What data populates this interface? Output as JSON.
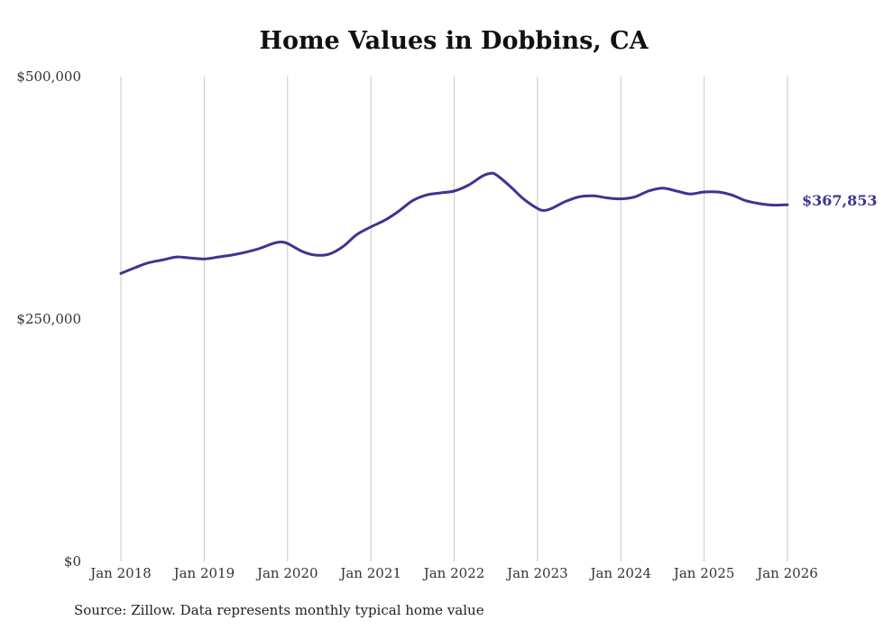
{
  "title": "Home Values in Dobbins, CA",
  "source": "Source: Zillow. Data represents monthly typical home value",
  "colors": {
    "line": "#3d3590",
    "grid": "#c8c8c8",
    "text": "#333333"
  },
  "chart_data": {
    "type": "line",
    "title": "Home Values in Dobbins, CA",
    "xlabel": "",
    "ylabel": "",
    "ylim": [
      0,
      500000
    ],
    "yticks": [
      {
        "value": 0,
        "label": "$0"
      },
      {
        "value": 250000,
        "label": "$250,000"
      },
      {
        "value": 500000,
        "label": "$500,000"
      }
    ],
    "xlim": [
      2018.0,
      2026.0
    ],
    "xticks": [
      {
        "value": 2018,
        "label": "Jan 2018"
      },
      {
        "value": 2019,
        "label": "Jan 2019"
      },
      {
        "value": 2020,
        "label": "Jan 2020"
      },
      {
        "value": 2021,
        "label": "Jan 2021"
      },
      {
        "value": 2022,
        "label": "Jan 2022"
      },
      {
        "value": 2023,
        "label": "Jan 2023"
      },
      {
        "value": 2024,
        "label": "Jan 2024"
      },
      {
        "value": 2025,
        "label": "Jan 2025"
      },
      {
        "value": 2026,
        "label": "Jan 2026"
      }
    ],
    "grid": "vertical",
    "end_label": "$367,853",
    "series": [
      {
        "name": "Typical home value",
        "x": [
          2018.0,
          2018.17,
          2018.33,
          2018.5,
          2018.67,
          2018.83,
          2019.0,
          2019.17,
          2019.33,
          2019.5,
          2019.67,
          2019.83,
          2019.92,
          2020.0,
          2020.17,
          2020.33,
          2020.5,
          2020.67,
          2020.83,
          2021.0,
          2021.17,
          2021.33,
          2021.5,
          2021.67,
          2021.83,
          2022.0,
          2022.17,
          2022.33,
          2022.42,
          2022.5,
          2022.67,
          2022.83,
          2023.0,
          2023.08,
          2023.17,
          2023.33,
          2023.5,
          2023.67,
          2023.83,
          2024.0,
          2024.17,
          2024.33,
          2024.5,
          2024.67,
          2024.83,
          2025.0,
          2025.17,
          2025.33,
          2025.5,
          2025.67,
          2025.83,
          2026.0
        ],
        "values": [
          297000,
          303000,
          308000,
          311000,
          314000,
          313000,
          312000,
          314000,
          316000,
          319000,
          323000,
          328000,
          329500,
          328000,
          320000,
          316000,
          317000,
          325000,
          337000,
          345000,
          352000,
          361000,
          372000,
          378000,
          380000,
          382000,
          388000,
          397000,
          400000,
          399000,
          387000,
          374000,
          364000,
          362000,
          364000,
          371000,
          376000,
          377000,
          375000,
          374000,
          376000,
          382000,
          385000,
          382000,
          379000,
          381000,
          381000,
          378000,
          372000,
          369000,
          367500,
          367853
        ]
      }
    ]
  }
}
